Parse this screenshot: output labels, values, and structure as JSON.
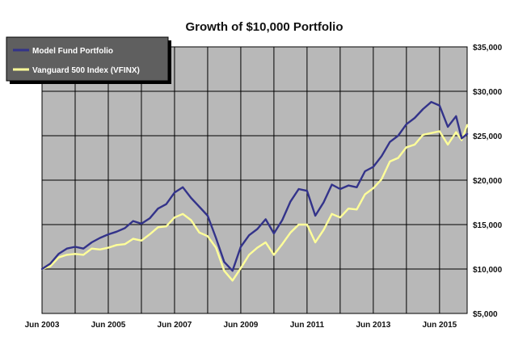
{
  "chart_data": {
    "type": "line",
    "title": "Growth of $10,000 Portfolio",
    "xlabel": "",
    "ylabel": "",
    "x_start": "Jun 2003",
    "x_end": "Apr 2016",
    "x_tick_labels": [
      "Jun 2003",
      "Jun 2005",
      "Jun 2007",
      "Jun 2009",
      "Jun 2011",
      "Jun 2013",
      "Jun 2015"
    ],
    "y_tick_labels": [
      "$5,000",
      "$10,000",
      "$15,000",
      "$20,000",
      "$25,000",
      "$30,000",
      "$35,000"
    ],
    "ylim": [
      5000,
      35000
    ],
    "grid": true,
    "legend_position": "top-left",
    "plot_background": "#b8b8b8",
    "series": [
      {
        "name": "Model Fund Portfolio",
        "color": "#33338a",
        "points": [
          [
            "Jun 2003",
            10000
          ],
          [
            "Sep 2003",
            10600
          ],
          [
            "Dec 2003",
            11700
          ],
          [
            "Mar 2004",
            12300
          ],
          [
            "Jun 2004",
            12500
          ],
          [
            "Sep 2004",
            12300
          ],
          [
            "Dec 2004",
            13000
          ],
          [
            "Mar 2005",
            13500
          ],
          [
            "Jun 2005",
            13900
          ],
          [
            "Sep 2005",
            14200
          ],
          [
            "Dec 2005",
            14600
          ],
          [
            "Mar 2006",
            15400
          ],
          [
            "Jun 2006",
            15100
          ],
          [
            "Sep 2006",
            15700
          ],
          [
            "Dec 2006",
            16800
          ],
          [
            "Mar 2007",
            17300
          ],
          [
            "Jun 2007",
            18600
          ],
          [
            "Sep 2007",
            19200
          ],
          [
            "Dec 2007",
            18000
          ],
          [
            "Mar 2008",
            17000
          ],
          [
            "Jun 2008",
            16000
          ],
          [
            "Sep 2008",
            13500
          ],
          [
            "Dec 2008",
            10800
          ],
          [
            "Mar 2009",
            9800
          ],
          [
            "Jun 2009",
            12500
          ],
          [
            "Sep 2009",
            13800
          ],
          [
            "Dec 2009",
            14500
          ],
          [
            "Mar 2010",
            15600
          ],
          [
            "Jun 2010",
            14000
          ],
          [
            "Sep 2010",
            15500
          ],
          [
            "Dec 2010",
            17600
          ],
          [
            "Mar 2011",
            19000
          ],
          [
            "Jun 2011",
            18800
          ],
          [
            "Sep 2011",
            16000
          ],
          [
            "Dec 2011",
            17500
          ],
          [
            "Mar 2012",
            19500
          ],
          [
            "Jun 2012",
            19000
          ],
          [
            "Sep 2012",
            19400
          ],
          [
            "Dec 2012",
            19200
          ],
          [
            "Mar 2013",
            21000
          ],
          [
            "Jun 2013",
            21500
          ],
          [
            "Sep 2013",
            22700
          ],
          [
            "Dec 2013",
            24300
          ],
          [
            "Mar 2014",
            25000
          ],
          [
            "Jun 2014",
            26300
          ],
          [
            "Sep 2014",
            27000
          ],
          [
            "Dec 2014",
            28000
          ],
          [
            "Mar 2015",
            28800
          ],
          [
            "Jun 2015",
            28400
          ],
          [
            "Sep 2015",
            26000
          ],
          [
            "Dec 2015",
            27200
          ],
          [
            "Feb 2016",
            24700
          ],
          [
            "Apr 2016",
            25200
          ]
        ]
      },
      {
        "name": "Vanguard 500 Index (VFINX)",
        "color": "#ffff99",
        "points": [
          [
            "Jun 2003",
            10000
          ],
          [
            "Sep 2003",
            10300
          ],
          [
            "Dec 2003",
            11300
          ],
          [
            "Mar 2004",
            11600
          ],
          [
            "Jun 2004",
            11700
          ],
          [
            "Sep 2004",
            11600
          ],
          [
            "Dec 2004",
            12300
          ],
          [
            "Mar 2005",
            12200
          ],
          [
            "Jun 2005",
            12400
          ],
          [
            "Sep 2005",
            12700
          ],
          [
            "Dec 2005",
            12800
          ],
          [
            "Mar 2006",
            13400
          ],
          [
            "Jun 2006",
            13200
          ],
          [
            "Sep 2006",
            13900
          ],
          [
            "Dec 2006",
            14700
          ],
          [
            "Mar 2007",
            14800
          ],
          [
            "Jun 2007",
            15800
          ],
          [
            "Sep 2007",
            16200
          ],
          [
            "Dec 2007",
            15500
          ],
          [
            "Mar 2008",
            14100
          ],
          [
            "Jun 2008",
            13700
          ],
          [
            "Sep 2008",
            12400
          ],
          [
            "Dec 2008",
            9800
          ],
          [
            "Mar 2009",
            8700
          ],
          [
            "Jun 2009",
            10100
          ],
          [
            "Sep 2009",
            11600
          ],
          [
            "Dec 2009",
            12400
          ],
          [
            "Mar 2010",
            13000
          ],
          [
            "Jun 2010",
            11600
          ],
          [
            "Sep 2010",
            12800
          ],
          [
            "Dec 2010",
            14100
          ],
          [
            "Mar 2011",
            15000
          ],
          [
            "Jun 2011",
            15000
          ],
          [
            "Sep 2011",
            13000
          ],
          [
            "Dec 2011",
            14400
          ],
          [
            "Mar 2012",
            16200
          ],
          [
            "Jun 2012",
            15800
          ],
          [
            "Sep 2012",
            16800
          ],
          [
            "Dec 2012",
            16700
          ],
          [
            "Mar 2013",
            18400
          ],
          [
            "Jun 2013",
            19100
          ],
          [
            "Sep 2013",
            20100
          ],
          [
            "Dec 2013",
            22100
          ],
          [
            "Mar 2014",
            22500
          ],
          [
            "Jun 2014",
            23700
          ],
          [
            "Sep 2014",
            24000
          ],
          [
            "Dec 2014",
            25100
          ],
          [
            "Mar 2015",
            25300
          ],
          [
            "Jun 2015",
            25500
          ],
          [
            "Sep 2015",
            24000
          ],
          [
            "Dec 2015",
            25400
          ],
          [
            "Feb 2016",
            24500
          ],
          [
            "Apr 2016",
            26200
          ]
        ]
      }
    ]
  }
}
